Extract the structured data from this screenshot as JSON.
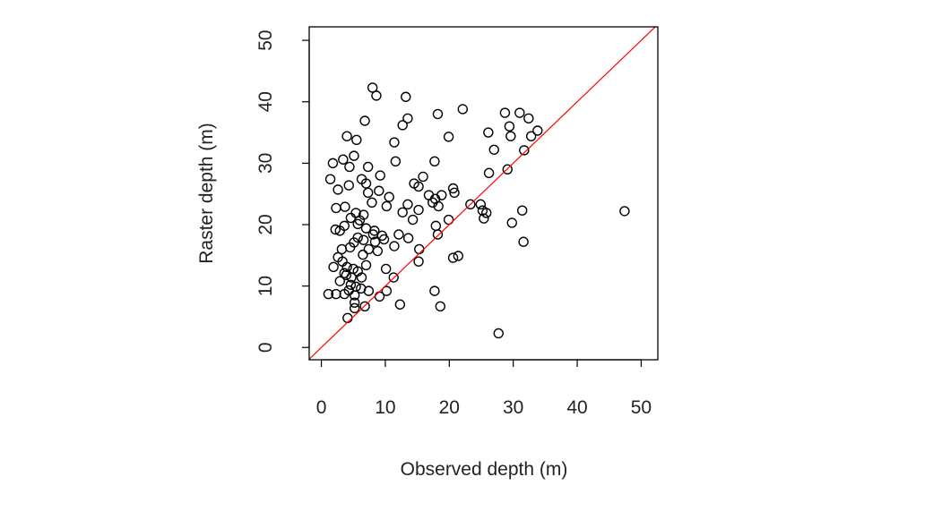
{
  "chart_data": {
    "type": "scatter",
    "title": "",
    "xlabel": "Observed depth (m)",
    "ylabel": "Raster depth (m)",
    "xlim": [
      -1.9,
      52.6
    ],
    "ylim": [
      -2.0,
      52.2
    ],
    "xticks": [
      0,
      10,
      20,
      30,
      40,
      50
    ],
    "yticks": [
      0,
      10,
      20,
      30,
      40,
      50
    ],
    "grid": false,
    "marker": "open-circle",
    "point_color": "#000000",
    "reference_line": {
      "type": "1:1",
      "slope": 1,
      "intercept": 0,
      "color": "#ff0000"
    },
    "points": [
      [
        8.0,
        42.3
      ],
      [
        8.6,
        41.0
      ],
      [
        13.2,
        40.8
      ],
      [
        13.5,
        37.3
      ],
      [
        12.7,
        36.2
      ],
      [
        6.8,
        36.9
      ],
      [
        4.0,
        34.4
      ],
      [
        5.5,
        33.8
      ],
      [
        11.4,
        33.4
      ],
      [
        11.6,
        30.3
      ],
      [
        1.8,
        30.0
      ],
      [
        3.4,
        30.6
      ],
      [
        5.1,
        31.2
      ],
      [
        4.4,
        29.4
      ],
      [
        7.3,
        29.4
      ],
      [
        9.2,
        28.0
      ],
      [
        1.4,
        27.4
      ],
      [
        2.6,
        25.7
      ],
      [
        4.3,
        26.4
      ],
      [
        6.3,
        27.4
      ],
      [
        7.0,
        26.7
      ],
      [
        7.3,
        25.2
      ],
      [
        9.0,
        25.5
      ],
      [
        10.6,
        24.5
      ],
      [
        10.2,
        23.0
      ],
      [
        7.9,
        23.6
      ],
      [
        2.3,
        22.7
      ],
      [
        3.7,
        22.9
      ],
      [
        5.4,
        21.9
      ],
      [
        6.6,
        21.6
      ],
      [
        4.6,
        21.1
      ],
      [
        2.2,
        19.2
      ],
      [
        2.9,
        19.0
      ],
      [
        3.6,
        19.8
      ],
      [
        5.7,
        20.1
      ],
      [
        7.0,
        19.4
      ],
      [
        8.1,
        18.4
      ],
      [
        9.5,
        18.2
      ],
      [
        5.7,
        17.9
      ],
      [
        6.6,
        17.5
      ],
      [
        5.1,
        17.1
      ],
      [
        8.4,
        17.2
      ],
      [
        7.4,
        16.0
      ],
      [
        8.8,
        15.7
      ],
      [
        2.6,
        14.7
      ],
      [
        3.3,
        14.0
      ],
      [
        1.9,
        13.1
      ],
      [
        4.0,
        13.1
      ],
      [
        5.0,
        12.8
      ],
      [
        7.0,
        13.4
      ],
      [
        3.6,
        12.1
      ],
      [
        4.7,
        11.4
      ],
      [
        5.7,
        12.4
      ],
      [
        6.3,
        11.4
      ],
      [
        2.9,
        10.8
      ],
      [
        4.6,
        10.2
      ],
      [
        5.4,
        9.9
      ],
      [
        6.2,
        9.6
      ],
      [
        4.3,
        9.3
      ],
      [
        2.3,
        8.7
      ],
      [
        1.1,
        8.7
      ],
      [
        3.6,
        8.7
      ],
      [
        5.2,
        8.5
      ],
      [
        5.2,
        7.3
      ],
      [
        5.2,
        6.4
      ],
      [
        6.8,
        6.7
      ],
      [
        4.1,
        4.8
      ],
      [
        7.4,
        9.2
      ],
      [
        9.1,
        8.3
      ],
      [
        10.1,
        12.8
      ],
      [
        11.3,
        11.4
      ],
      [
        10.2,
        9.2
      ],
      [
        12.3,
        7.0
      ],
      [
        11.4,
        16.5
      ],
      [
        12.1,
        18.4
      ],
      [
        13.6,
        17.8
      ],
      [
        14.3,
        20.8
      ],
      [
        12.7,
        22.0
      ],
      [
        13.5,
        23.3
      ],
      [
        15.2,
        22.4
      ],
      [
        14.5,
        26.7
      ],
      [
        15.2,
        26.2
      ],
      [
        15.9,
        27.8
      ],
      [
        17.7,
        30.3
      ],
      [
        16.8,
        24.8
      ],
      [
        17.8,
        24.2
      ],
      [
        18.8,
        24.8
      ],
      [
        18.3,
        23.0
      ],
      [
        17.4,
        23.6
      ],
      [
        17.9,
        19.8
      ],
      [
        18.2,
        18.4
      ],
      [
        15.3,
        16.0
      ],
      [
        15.2,
        14.0
      ],
      [
        19.9,
        20.8
      ],
      [
        20.6,
        25.9
      ],
      [
        20.8,
        25.2
      ],
      [
        19.9,
        34.3
      ],
      [
        18.2,
        38.0
      ],
      [
        22.1,
        38.8
      ],
      [
        20.6,
        14.6
      ],
      [
        21.4,
        14.9
      ],
      [
        17.7,
        9.2
      ],
      [
        18.6,
        6.7
      ],
      [
        23.3,
        23.3
      ],
      [
        24.9,
        23.3
      ],
      [
        25.2,
        22.3
      ],
      [
        25.8,
        21.9
      ],
      [
        25.4,
        21.0
      ],
      [
        26.1,
        35.0
      ],
      [
        27.0,
        32.2
      ],
      [
        26.2,
        28.4
      ],
      [
        29.1,
        29.0
      ],
      [
        28.7,
        38.2
      ],
      [
        31.0,
        38.2
      ],
      [
        32.4,
        37.3
      ],
      [
        29.4,
        36.0
      ],
      [
        29.6,
        34.4
      ],
      [
        32.8,
        34.4
      ],
      [
        33.8,
        35.3
      ],
      [
        31.7,
        32.1
      ],
      [
        29.8,
        20.3
      ],
      [
        31.4,
        22.3
      ],
      [
        31.6,
        17.2
      ],
      [
        27.7,
        2.3
      ],
      [
        47.4,
        22.2
      ],
      [
        3.9,
        11.8
      ],
      [
        4.5,
        16.3
      ],
      [
        6.0,
        20.7
      ],
      [
        6.5,
        15.1
      ],
      [
        3.2,
        16.0
      ],
      [
        8.3,
        19.0
      ],
      [
        9.8,
        17.6
      ]
    ]
  }
}
